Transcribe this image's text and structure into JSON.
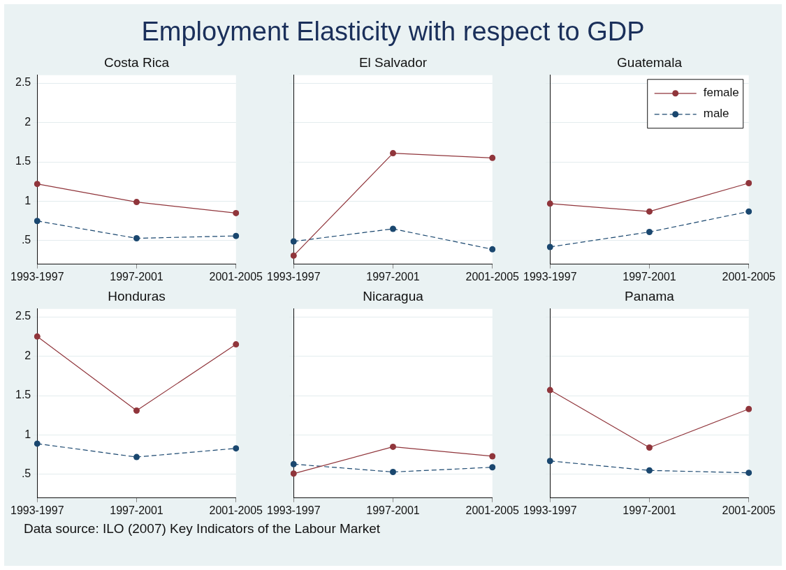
{
  "chart_data": [
    {
      "type": "other",
      "title": "Employment Elasticity with respect to GDP"
    },
    {
      "type": "line",
      "title": "Costa Rica",
      "categories": [
        "1993-1997",
        "1997-2001",
        "2001-2005"
      ],
      "ylim": [
        0.2,
        2.6
      ],
      "yticks": [
        {
          "value": 0.5,
          "label": ".5"
        },
        1,
        1.5,
        2,
        2.5
      ],
      "grid": "y",
      "marker": "circle",
      "legend": false,
      "series": [
        {
          "color": "#90353b",
          "line_style": "solid",
          "values": [
            1.22,
            0.99,
            0.85
          ]
        },
        {
          "color": "#1a476f",
          "line_style": "dashed",
          "values": [
            0.75,
            0.53,
            0.56
          ]
        }
      ]
    },
    {
      "type": "line",
      "title": "El Salvador",
      "categories": [
        "1993-1997",
        "1997-2001",
        "2001-2005"
      ],
      "ylim": [
        0.2,
        2.6
      ],
      "yticks": [
        0.5,
        1,
        1.5,
        2,
        2.5
      ],
      "grid": "y",
      "marker": "circle",
      "legend": false,
      "tick_labels": "x",
      "series": [
        {
          "color": "#90353b",
          "line_style": "solid",
          "values": [
            0.31,
            1.61,
            1.55
          ]
        },
        {
          "color": "#1a476f",
          "line_style": "dashed",
          "values": [
            0.49,
            0.65,
            0.39
          ]
        }
      ]
    },
    {
      "type": "line",
      "title": "Guatemala",
      "categories": [
        "1993-1997",
        "1997-2001",
        "2001-2005"
      ],
      "ylim": [
        0.2,
        2.6
      ],
      "yticks": [
        0.5,
        1,
        1.5,
        2,
        2.5
      ],
      "grid": "y",
      "marker": "circle",
      "legend": "top right",
      "tick_labels": "x",
      "series": [
        {
          "name": "female",
          "color": "#90353b",
          "line_style": "solid",
          "values": [
            0.97,
            0.87,
            1.23
          ]
        },
        {
          "name": "male",
          "color": "#1a476f",
          "line_style": "dashed",
          "values": [
            0.42,
            0.61,
            0.87
          ]
        }
      ]
    },
    {
      "type": "line",
      "title": "Honduras",
      "categories": [
        "1993-1997",
        "1997-2001",
        "2001-2005"
      ],
      "ylim": [
        0.2,
        2.6
      ],
      "yticks": [
        {
          "value": 0.5,
          "label": ".5"
        },
        1,
        1.5,
        2,
        2.5
      ],
      "grid": "y",
      "marker": "circle",
      "legend": false,
      "series": [
        {
          "color": "#90353b",
          "line_style": "solid",
          "values": [
            2.25,
            1.31,
            2.15
          ]
        },
        {
          "color": "#1a476f",
          "line_style": "dashed",
          "values": [
            0.89,
            0.72,
            0.83
          ]
        }
      ]
    },
    {
      "type": "line",
      "title": "Nicaragua",
      "categories": [
        "1993-1997",
        "1997-2001",
        "2001-2005"
      ],
      "ylim": [
        0.2,
        2.6
      ],
      "yticks": [
        0.5,
        1,
        1.5,
        2,
        2.5
      ],
      "grid": "y",
      "marker": "circle",
      "legend": false,
      "tick_labels": "x",
      "series": [
        {
          "color": "#90353b",
          "line_style": "solid",
          "values": [
            0.51,
            0.85,
            0.73
          ]
        },
        {
          "color": "#1a476f",
          "line_style": "dashed",
          "values": [
            0.63,
            0.53,
            0.59
          ]
        }
      ]
    },
    {
      "type": "line",
      "title": "Panama",
      "categories": [
        "1993-1997",
        "1997-2001",
        "2001-2005"
      ],
      "ylim": [
        0.2,
        2.6
      ],
      "yticks": [
        0.5,
        1,
        1.5,
        2,
        2.5
      ],
      "grid": "y",
      "marker": "circle",
      "legend": false,
      "tick_labels": "x",
      "series": [
        {
          "color": "#90353b",
          "line_style": "solid",
          "values": [
            1.57,
            0.84,
            1.33
          ]
        },
        {
          "color": "#1a476f",
          "line_style": "dashed",
          "values": [
            0.67,
            0.55,
            0.52
          ]
        }
      ]
    },
    {
      "type": "other",
      "annotations": [
        "Data source: ILO (2007) Key Indicators of the Labour Market"
      ]
    }
  ]
}
